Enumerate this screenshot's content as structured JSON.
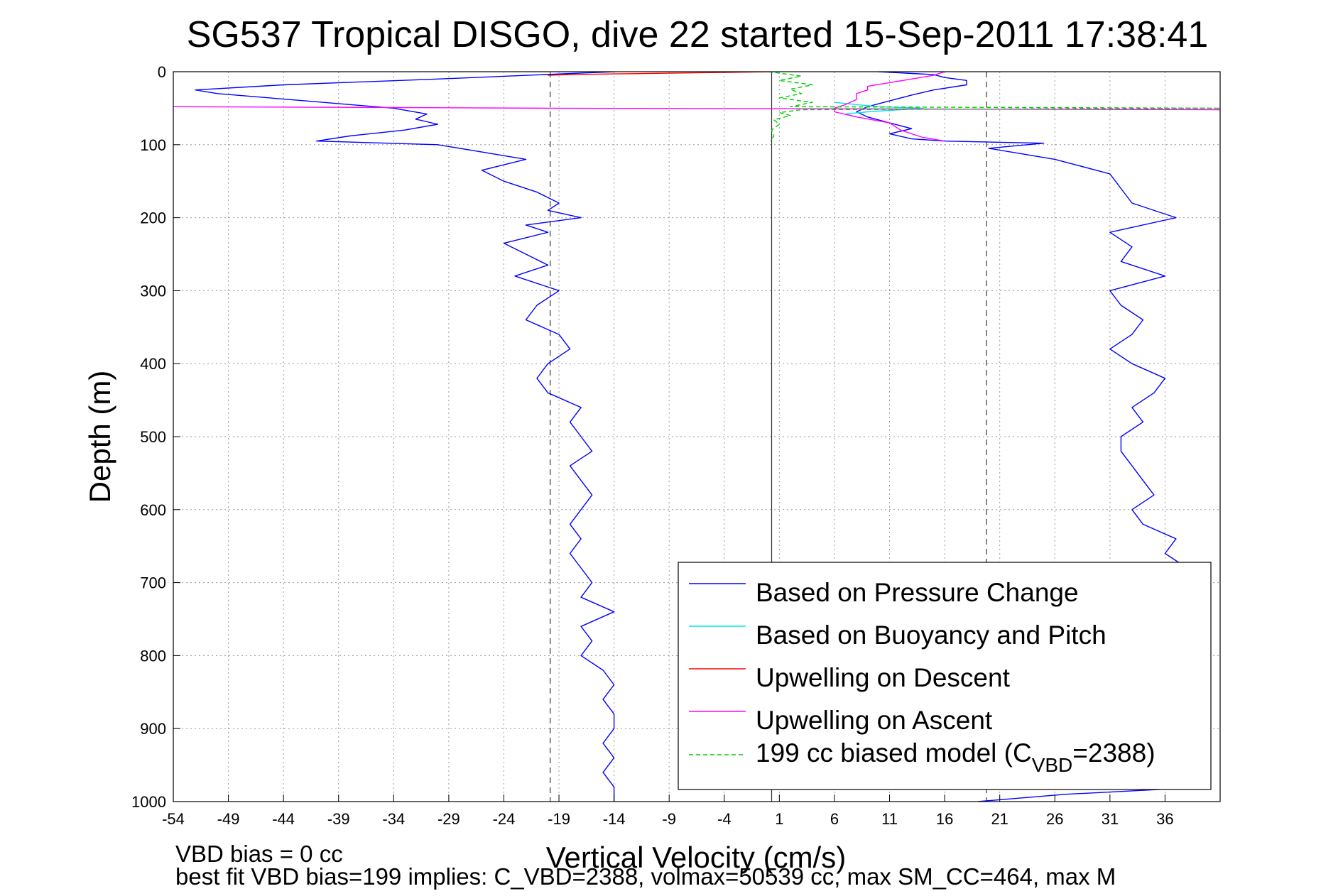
{
  "chart_data": {
    "type": "line",
    "title": "SG537 Tropical DISGO, dive 22 started 15-Sep-2011 17:38:41",
    "xlabel": "Vertical Velocity (cm/s)",
    "ylabel": "Depth (m)",
    "xlim": [
      -54,
      41
    ],
    "ylim": [
      0,
      1000
    ],
    "y_reversed": true,
    "grid": true,
    "xticks": [
      -54,
      -49,
      -44,
      -39,
      -34,
      -29,
      -24,
      -19,
      -14,
      -9,
      -4,
      1,
      6,
      11,
      16,
      21,
      26,
      31,
      36
    ],
    "yticks": [
      0,
      100,
      200,
      300,
      400,
      500,
      600,
      700,
      800,
      900,
      1000
    ],
    "legend_position": "lower-right",
    "legend": [
      {
        "label": "Based on Pressure Change",
        "color": "#0000ff",
        "dash": "solid"
      },
      {
        "label": "Based on Buoyancy and Pitch",
        "color": "#00e5e5",
        "dash": "solid"
      },
      {
        "label": "Upwelling on Descent",
        "color": "#ff0000",
        "dash": "solid"
      },
      {
        "label": "Upwelling on Ascent",
        "color": "#ff00ff",
        "dash": "solid"
      },
      {
        "label_main": "199 cc biased model (C",
        "label_sub": "VBD",
        "label_tail": "=2388)",
        "color": "#00cc00",
        "dash": "dashed"
      }
    ],
    "reference_lines_x": [
      -19.8,
      0.3,
      19.8
    ],
    "series": [
      {
        "name": "Based on Pressure Change",
        "color": "#0000ff",
        "segments": [
          {
            "depth": [
              0,
              10,
              18,
              25,
              30,
              40,
              50,
              58,
              65,
              72,
              80,
              88,
              95,
              100,
              110,
              120,
              135,
              150,
              165,
              180,
              190,
              200,
              210,
              220,
              235,
              250,
              265,
              280,
              300,
              320,
              340,
              360,
              380,
              400,
              420,
              440,
              460,
              480,
              500,
              520,
              540,
              560,
              580,
              600,
              620,
              640,
              660,
              680,
              700,
              720,
              740,
              760,
              780,
              800,
              820,
              840,
              860,
              880,
              900,
              920,
              940,
              960,
              980,
              1000
            ],
            "x": [
              -14,
              -30,
              -44,
              -52,
              -50,
              -42,
              -34,
              -31,
              -32,
              -30,
              -33,
              -38,
              -41,
              -30,
              -26,
              -22,
              -26,
              -24,
              -21,
              -19,
              -20,
              -17,
              -22,
              -20,
              -24,
              -22,
              -20,
              -23,
              -19,
              -21,
              -22,
              -19,
              -18,
              -20,
              -21,
              -20,
              -17,
              -18,
              -17,
              -16,
              -18,
              -17,
              -16,
              -17,
              -18,
              -17,
              -18,
              -17,
              -16,
              -17,
              -14,
              -17,
              -16,
              -17,
              -15,
              -14,
              -15,
              -14,
              -14,
              -15,
              -14,
              -15,
              -14,
              -14
            ]
          },
          {
            "depth": [
              1000,
              990,
              980,
              960,
              940,
              920,
              900,
              880,
              860,
              840,
              820,
              800,
              780,
              760,
              740,
              720,
              700,
              680,
              660,
              640,
              620,
              600,
              580,
              560,
              540,
              520,
              500,
              480,
              460,
              440,
              420,
              400,
              380,
              360,
              340,
              320,
              300,
              280,
              260,
              240,
              220,
              200,
              180,
              160,
              140,
              120,
              105,
              98,
              95,
              92,
              85,
              78,
              70,
              62,
              55,
              48,
              40,
              32,
              25,
              18,
              12,
              8,
              4,
              0
            ],
            "x": [
              19,
              27,
              40,
              40,
              40,
              40,
              40,
              40,
              40,
              40,
              40,
              40,
              40,
              40,
              40,
              40,
              40,
              38,
              36,
              37,
              34,
              33,
              35,
              34,
              33,
              32,
              32,
              34,
              33,
              35,
              36,
              33,
              31,
              33,
              34,
              32,
              31,
              36,
              32,
              33,
              31,
              37,
              33,
              32,
              31,
              26,
              20,
              25,
              16,
              13,
              11,
              13,
              11,
              9,
              8,
              9,
              11,
              13,
              15,
              18,
              18,
              16,
              15,
              10
            ]
          }
        ]
      },
      {
        "name": "Based on Buoyancy and Pitch",
        "color": "#00e5e5",
        "segments": [
          {
            "depth": [
              42,
              45,
              48,
              50,
              52,
              55,
              58,
              62
            ],
            "x": [
              6,
              8,
              10,
              14,
              12,
              9,
              7,
              8
            ]
          }
        ]
      },
      {
        "name": "Upwelling on Descent",
        "color": "#ff0000",
        "segments": [
          {
            "depth": [
              0,
              1,
              2,
              3,
              4,
              5
            ],
            "x": [
              0,
              -4,
              -9,
              -14,
              -18,
              -20
            ]
          }
        ]
      },
      {
        "name": "Upwelling on Ascent",
        "color": "#ff00ff",
        "segments": [
          {
            "depth": [
              48,
              50,
              52
            ],
            "x": [
              -54,
              -20,
              41
            ]
          },
          {
            "depth": [
              0,
              5,
              10,
              15,
              20,
              25,
              30,
              38,
              45,
              50,
              55,
              62,
              70,
              80,
              90,
              95
            ],
            "x": [
              16,
              15,
              13,
              11,
              9,
              9,
              8,
              8,
              7,
              6,
              6,
              8,
              11,
              12,
              14,
              16
            ]
          }
        ]
      },
      {
        "name": "199 cc biased model (C_VBD=2388)",
        "color": "#00cc00",
        "segments": [
          {
            "depth": [
              0,
              6,
              12,
              18,
              24,
              30,
              36,
              42,
              48,
              50,
              52,
              56,
              60,
              66,
              72,
              80,
              88,
              95
            ],
            "x": [
              0,
              3,
              1,
              4,
              2,
              3,
              1,
              4,
              2,
              41,
              3,
              1,
              2,
              0.5,
              1,
              0.3,
              0.5,
              0.2
            ]
          }
        ]
      }
    ]
  },
  "annotations": {
    "vbd_bias": "VBD bias = 0 cc",
    "best_fit": "best fit VBD bias=199 implies: C_VBD=2388, volmax=50539 cc, max SM_CC=464, max M"
  }
}
